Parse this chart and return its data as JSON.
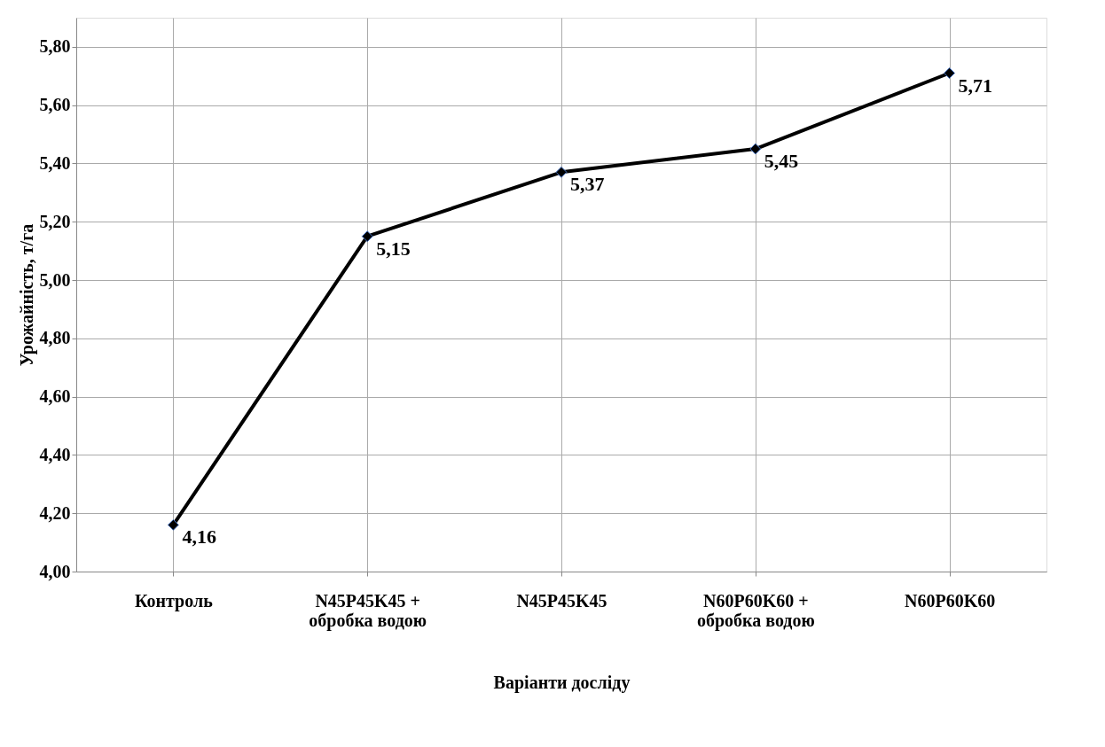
{
  "chart_data": {
    "type": "line",
    "xlabel": "Варіанти досліду",
    "ylabel": "Урожайність, т/га",
    "categories": [
      "Контроль",
      "N45P45K45 + обробка водою",
      "N45P45K45",
      "N60P60K60 + обробка водою",
      "N60P60K60"
    ],
    "series": [
      {
        "color": "#000000",
        "values": [
          4.16,
          5.15,
          5.37,
          5.45,
          5.71
        ],
        "value_labels": [
          "4,16",
          "5,15",
          "5,37",
          "5,45",
          "5,71"
        ]
      }
    ],
    "ylim": [
      4.0,
      5.9
    ],
    "yticks": [
      {
        "value": 4.0,
        "label": "4,00"
      },
      {
        "value": 4.2,
        "label": "4,20"
      },
      {
        "value": 4.4,
        "label": "4,40"
      },
      {
        "value": 4.6,
        "label": "4,60"
      },
      {
        "value": 4.8,
        "label": "4,80"
      },
      {
        "value": 5.0,
        "label": "5,00"
      },
      {
        "value": 5.2,
        "label": "5,20"
      },
      {
        "value": 5.4,
        "label": "5,40"
      },
      {
        "value": 5.6,
        "label": "5,60"
      },
      {
        "value": 5.8,
        "label": "5,80"
      }
    ],
    "grid": true,
    "marker": "diamond",
    "line_style": "solid"
  }
}
